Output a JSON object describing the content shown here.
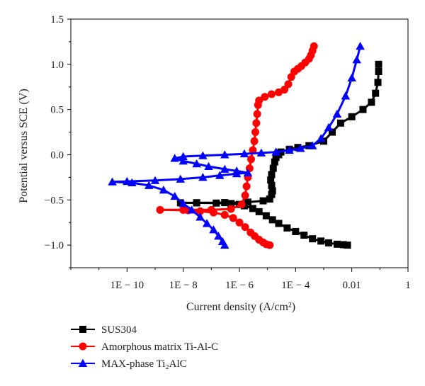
{
  "chart_data": {
    "type": "line",
    "title": "",
    "xlabel": "Current density (A/cm²)",
    "ylabel": "Potential versus SCE (V)",
    "x_scale": "log",
    "xlim": [
      1e-12,
      1
    ],
    "ylim": [
      -1.25,
      1.5
    ],
    "x_tick_labels": [
      "1E − 10",
      "1E − 8",
      "1E − 6",
      "1E − 4",
      "0.01",
      "1"
    ],
    "x_tick_values": [
      1e-10,
      1e-08,
      1e-06,
      0.0001,
      0.01,
      1
    ],
    "y_tick_labels": [
      "−1.0",
      "−0.5",
      "0.0",
      "0.5",
      "1.0",
      "1.5"
    ],
    "y_tick_values": [
      -1.0,
      -0.5,
      0.0,
      0.5,
      1.0,
      1.5
    ],
    "grid": false,
    "legend_position": "below",
    "series": [
      {
        "name": "SUS304",
        "color": "#000000",
        "marker": "square",
        "points": [
          [
            0.007,
            -1.0
          ],
          [
            0.005,
            -0.995
          ],
          [
            0.003,
            -0.99
          ],
          [
            0.0015,
            -0.975
          ],
          [
            0.0008,
            -0.955
          ],
          [
            0.0004,
            -0.93
          ],
          [
            0.0002,
            -0.89
          ],
          [
            0.0001,
            -0.85
          ],
          [
            5e-05,
            -0.81
          ],
          [
            2.5e-05,
            -0.76
          ],
          [
            1.5e-05,
            -0.72
          ],
          [
            9e-06,
            -0.675
          ],
          [
            5e-06,
            -0.63
          ],
          [
            3e-06,
            -0.595
          ],
          [
            1.5e-06,
            -0.565
          ],
          [
            1e-06,
            -0.55
          ],
          [
            5e-07,
            -0.54
          ],
          [
            1.5e-07,
            -0.535
          ],
          [
            3e-08,
            -0.533
          ],
          [
            8e-09,
            -0.532
          ],
          [
            3e-08,
            -0.531
          ],
          [
            3e-07,
            -0.53
          ],
          [
            2e-06,
            -0.525
          ],
          [
            7e-06,
            -0.51
          ],
          [
            1.2e-05,
            -0.49
          ],
          [
            1.4e-05,
            -0.44
          ],
          [
            1.5e-05,
            -0.4
          ],
          [
            1.4e-05,
            -0.34
          ],
          [
            1.3e-05,
            -0.28
          ],
          [
            1.4e-05,
            -0.22
          ],
          [
            1.6e-05,
            -0.15
          ],
          [
            1.8e-05,
            -0.08
          ],
          [
            2e-05,
            -0.03
          ],
          [
            2.5e-05,
            0.0
          ],
          [
            3e-05,
            0.03
          ],
          [
            6e-05,
            0.06
          ],
          [
            0.00012,
            0.08
          ],
          [
            0.0003,
            0.1
          ],
          [
            0.001,
            0.15
          ],
          [
            0.002,
            0.25
          ],
          [
            0.004,
            0.35
          ],
          [
            0.01,
            0.42
          ],
          [
            0.025,
            0.5
          ],
          [
            0.05,
            0.58
          ],
          [
            0.07,
            0.68
          ],
          [
            0.085,
            0.8
          ],
          [
            0.09,
            0.92
          ],
          [
            0.09,
            1.0
          ]
        ]
      },
      {
        "name": "Amorphous matrix Ti-Al-C",
        "color": "#ff0000",
        "marker": "circle",
        "points": [
          [
            1.2e-05,
            -1.0
          ],
          [
            9e-06,
            -0.99
          ],
          [
            7e-06,
            -0.97
          ],
          [
            5e-06,
            -0.94
          ],
          [
            3.5e-06,
            -0.9
          ],
          [
            2.5e-06,
            -0.86
          ],
          [
            1.6e-06,
            -0.8
          ],
          [
            1e-06,
            -0.75
          ],
          [
            6e-07,
            -0.7
          ],
          [
            3e-07,
            -0.665
          ],
          [
            1.2e-07,
            -0.64
          ],
          [
            4e-08,
            -0.625
          ],
          [
            1.5e-08,
            -0.615
          ],
          [
            1.5e-09,
            -0.61
          ],
          [
            1e-08,
            -0.61
          ],
          [
            1e-07,
            -0.61
          ],
          [
            5e-07,
            -0.6
          ],
          [
            1.2e-06,
            -0.55
          ],
          [
            1.6e-06,
            -0.45
          ],
          [
            1.8e-06,
            -0.35
          ],
          [
            2e-06,
            -0.25
          ],
          [
            2.3e-06,
            -0.15
          ],
          [
            2.6e-06,
            -0.05
          ],
          [
            3e-06,
            0.05
          ],
          [
            3.4e-06,
            0.15
          ],
          [
            3.7e-06,
            0.25
          ],
          [
            4e-06,
            0.35
          ],
          [
            4.3e-06,
            0.45
          ],
          [
            4.6e-06,
            0.55
          ],
          [
            5e-06,
            0.6
          ],
          [
            8e-06,
            0.64
          ],
          [
            1.4e-05,
            0.67
          ],
          [
            2.5e-05,
            0.69
          ],
          [
            4e-05,
            0.72
          ],
          [
            5.5e-05,
            0.78
          ],
          [
            7e-05,
            0.86
          ],
          [
            9e-05,
            0.92
          ],
          [
            0.00012,
            0.95
          ],
          [
            0.00016,
            0.98
          ],
          [
            0.00022,
            1.02
          ],
          [
            0.0003,
            1.06
          ],
          [
            0.00035,
            1.1
          ],
          [
            0.0004,
            1.15
          ],
          [
            0.00045,
            1.2
          ]
        ]
      },
      {
        "name": "MAX-phase Ti₂AlC",
        "color": "#0000ff",
        "marker": "triangle",
        "points": [
          [
            3e-07,
            -1.0
          ],
          [
            2.5e-07,
            -0.96
          ],
          [
            1.8e-07,
            -0.9
          ],
          [
            1.2e-07,
            -0.83
          ],
          [
            7e-08,
            -0.76
          ],
          [
            4e-08,
            -0.69
          ],
          [
            2e-08,
            -0.61
          ],
          [
            1e-08,
            -0.54
          ],
          [
            5e-09,
            -0.46
          ],
          [
            2e-09,
            -0.39
          ],
          [
            6e-10,
            -0.34
          ],
          [
            1.5e-10,
            -0.31
          ],
          [
            3e-11,
            -0.3
          ],
          [
            1e-10,
            -0.295
          ],
          [
            1e-09,
            -0.285
          ],
          [
            8e-09,
            -0.27
          ],
          [
            5e-08,
            -0.25
          ],
          [
            2e-07,
            -0.23
          ],
          [
            8e-07,
            -0.21
          ],
          [
            2e-06,
            -0.2
          ],
          [
            8e-07,
            -0.18
          ],
          [
            3e-07,
            -0.16
          ],
          [
            8e-08,
            -0.13
          ],
          [
            3e-08,
            -0.1
          ],
          [
            1e-08,
            -0.07
          ],
          [
            5e-09,
            -0.04
          ],
          [
            1e-08,
            -0.02
          ],
          [
            5e-08,
            -0.01
          ],
          [
            3e-07,
            0.0
          ],
          [
            1.5e-06,
            0.01
          ],
          [
            6e-06,
            0.02
          ],
          [
            2e-05,
            0.03
          ],
          [
            6e-05,
            0.05
          ],
          [
            0.00015,
            0.07
          ],
          [
            0.0004,
            0.1
          ],
          [
            0.0008,
            0.18
          ],
          [
            0.0015,
            0.3
          ],
          [
            0.003,
            0.45
          ],
          [
            0.006,
            0.65
          ],
          [
            0.01,
            0.85
          ],
          [
            0.015,
            1.05
          ],
          [
            0.02,
            1.2
          ]
        ]
      }
    ]
  }
}
